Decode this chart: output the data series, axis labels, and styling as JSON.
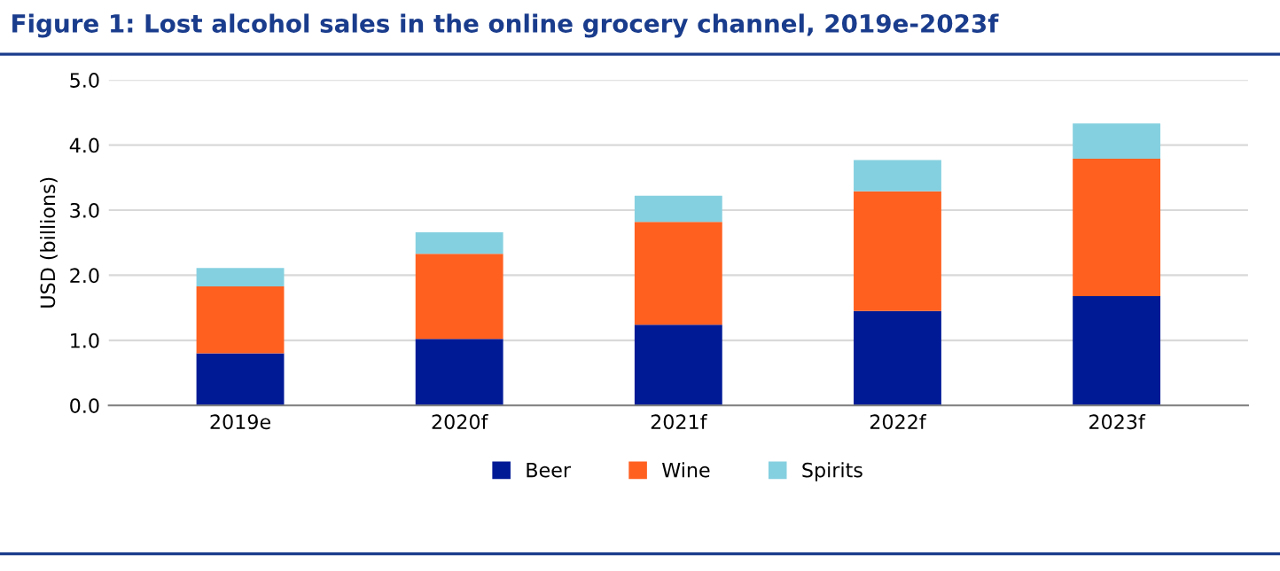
{
  "chart_data": {
    "type": "bar",
    "title": "Figure 1: Lost alcohol sales in the online grocery channel, 2019e-2023f",
    "ylabel": "USD (billions)",
    "categories": [
      "2019e",
      "2020f",
      "2021f",
      "2022f",
      "2023f"
    ],
    "stacked": true,
    "series": [
      {
        "name": "Beer",
        "color": "#001a96",
        "values": [
          0.8,
          1.02,
          1.24,
          1.45,
          1.68
        ]
      },
      {
        "name": "Wine",
        "color": "#ff6020",
        "values": [
          1.03,
          1.31,
          1.58,
          1.84,
          2.11
        ]
      },
      {
        "name": "Spirits",
        "color": "#85d0e0",
        "values": [
          0.28,
          0.33,
          0.4,
          0.48,
          0.54
        ]
      }
    ],
    "ylim": [
      0,
      5
    ],
    "yticks": [
      {
        "value": 0,
        "label": "0.0"
      },
      {
        "value": 1,
        "label": "1.0"
      },
      {
        "value": 2,
        "label": "2.0"
      },
      {
        "value": 3,
        "label": "3.0"
      },
      {
        "value": 4,
        "label": "4.0"
      },
      {
        "value": 5,
        "label": "5.0"
      }
    ],
    "grid": "y",
    "legend": "bottom"
  }
}
